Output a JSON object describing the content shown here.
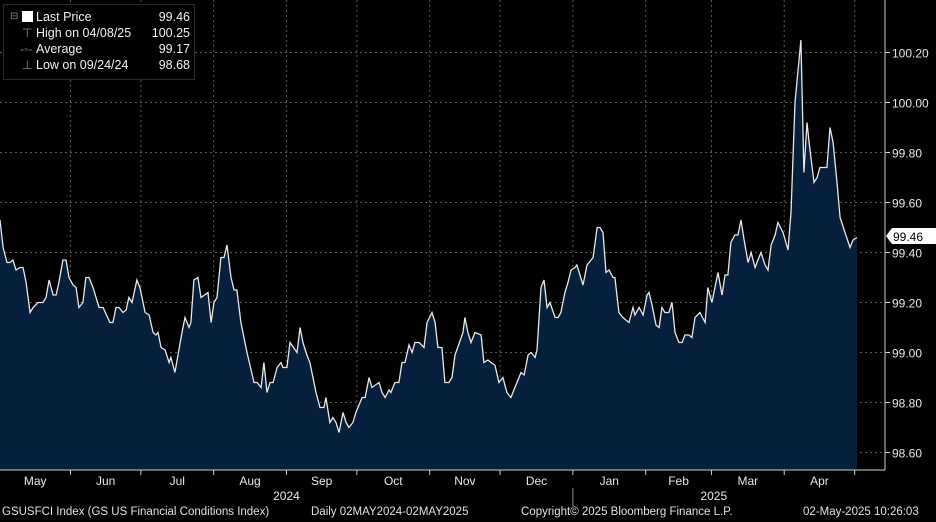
{
  "legend": {
    "rows": [
      {
        "label": "Last Price",
        "value": "99.46"
      },
      {
        "label": "High on 04/08/25",
        "value": "100.25"
      },
      {
        "label": "Average",
        "value": "99.17"
      },
      {
        "label": "Low on 09/24/24",
        "value": "98.68"
      }
    ]
  },
  "footer": {
    "security": "GSUSFCI Index (GS US Financial Conditions Index)",
    "range": "Daily 02MAY2024-02MAY2025",
    "copyright": "Copyright© 2025 Bloomberg Finance L.P.",
    "timestamp": "02-May-2025 10:26:03"
  },
  "colors": {
    "line": "#e8e8e8",
    "area": "#061f3d",
    "grid": "#5a5a5a",
    "background": "#000000"
  },
  "chart_data": {
    "type": "area",
    "title": "GS US Financial Conditions Index",
    "xlabel": "",
    "ylabel": "",
    "x_unit": "days since 02MAY2024",
    "xlim": [
      0,
      365
    ],
    "ylim": [
      98.53,
      100.41
    ],
    "grid": true,
    "last_value_label": "99.46",
    "y_ticks": [
      "98.60",
      "98.80",
      "99.00",
      "99.20",
      "99.40",
      "99.60",
      "99.80",
      "100.00",
      "100.20"
    ],
    "months": [
      {
        "label": "May",
        "start": -1,
        "end": 30
      },
      {
        "label": "Jun",
        "start": 30,
        "end": 60
      },
      {
        "label": "Jul",
        "start": 60,
        "end": 91
      },
      {
        "label": "Aug",
        "start": 91,
        "end": 122
      },
      {
        "label": "Sep",
        "start": 122,
        "end": 152
      },
      {
        "label": "Oct",
        "start": 152,
        "end": 183
      },
      {
        "label": "Nov",
        "start": 183,
        "end": 213
      },
      {
        "label": "Dec",
        "start": 213,
        "end": 244
      },
      {
        "label": "Jan",
        "start": 244,
        "end": 275
      },
      {
        "label": "Feb",
        "start": 275,
        "end": 303
      },
      {
        "label": "Mar",
        "start": 303,
        "end": 334
      },
      {
        "label": "Apr",
        "start": 334,
        "end": 364
      }
    ],
    "years": [
      {
        "label": "2024",
        "start": -1,
        "end": 244
      },
      {
        "label": "2025",
        "start": 244,
        "end": 364
      }
    ],
    "series": [
      {
        "name": "Last Price",
        "points": [
          [
            0,
            99.53
          ],
          [
            1.3,
            99.42
          ],
          [
            3,
            99.36
          ],
          [
            4.3,
            99.36
          ],
          [
            5.5,
            99.37
          ],
          [
            6.8,
            99.33
          ],
          [
            8.5,
            99.34
          ],
          [
            9.8,
            99.34
          ],
          [
            11.1,
            99.28
          ],
          [
            12.8,
            99.16
          ],
          [
            14.1,
            99.18
          ],
          [
            16.2,
            99.2
          ],
          [
            18.3,
            99.2
          ],
          [
            19.6,
            99.22
          ],
          [
            20.9,
            99.29
          ],
          [
            22.6,
            99.23
          ],
          [
            23.9,
            99.23
          ],
          [
            25.1,
            99.28
          ],
          [
            26.8,
            99.37
          ],
          [
            28.1,
            99.37
          ],
          [
            29.4,
            99.3
          ],
          [
            31.1,
            99.27
          ],
          [
            32.4,
            99.26
          ],
          [
            33.6,
            99.18
          ],
          [
            35.3,
            99.2
          ],
          [
            36.6,
            99.3
          ],
          [
            37.9,
            99.3
          ],
          [
            39.6,
            99.26
          ],
          [
            42.2,
            99.18
          ],
          [
            43.9,
            99.18
          ],
          [
            46.8,
            99.12
          ],
          [
            48.1,
            99.12
          ],
          [
            49.4,
            99.18
          ],
          [
            50.7,
            99.18
          ],
          [
            52.4,
            99.16
          ],
          [
            53.7,
            99.17
          ],
          [
            54.9,
            99.22
          ],
          [
            56.2,
            99.2
          ],
          [
            58.3,
            99.29
          ],
          [
            59.6,
            99.26
          ],
          [
            61.8,
            99.16
          ],
          [
            63.5,
            99.15
          ],
          [
            65.2,
            99.08
          ],
          [
            66.4,
            99.07
          ],
          [
            67.3,
            99.08
          ],
          [
            68.6,
            99.02
          ],
          [
            70.3,
            99.01
          ],
          [
            72,
            98.96
          ],
          [
            72.8,
            98.98
          ],
          [
            74.5,
            98.92
          ],
          [
            77.5,
            99.08
          ],
          [
            78.8,
            99.14
          ],
          [
            80.5,
            99.1
          ],
          [
            81.3,
            99.12
          ],
          [
            82.6,
            99.29
          ],
          [
            84.3,
            99.3
          ],
          [
            85.6,
            99.22
          ],
          [
            88.6,
            99.24
          ],
          [
            89.9,
            99.12
          ],
          [
            91.1,
            99.2
          ],
          [
            92.4,
            99.22
          ],
          [
            94.1,
            99.38
          ],
          [
            95.4,
            99.38
          ],
          [
            96.7,
            99.43
          ],
          [
            98.4,
            99.3
          ],
          [
            99.7,
            99.25
          ],
          [
            100.9,
            99.25
          ],
          [
            102.6,
            99.12
          ],
          [
            105.2,
            99.0
          ],
          [
            108.2,
            98.88
          ],
          [
            109.5,
            98.88
          ],
          [
            111.2,
            98.86
          ],
          [
            112.4,
            98.96
          ],
          [
            113.7,
            98.84
          ],
          [
            115,
            98.88
          ],
          [
            116.3,
            98.88
          ],
          [
            118,
            98.94
          ],
          [
            119.7,
            98.96
          ],
          [
            120.5,
            98.94
          ],
          [
            122.2,
            98.94
          ],
          [
            123.5,
            99.04
          ],
          [
            126.5,
            99.0
          ],
          [
            127.8,
            99.1
          ],
          [
            129,
            99.04
          ],
          [
            130.7,
            98.99
          ],
          [
            132,
            98.96
          ],
          [
            134.6,
            98.84
          ],
          [
            136.3,
            98.78
          ],
          [
            138,
            98.78
          ],
          [
            138.8,
            98.82
          ],
          [
            140.5,
            98.72
          ],
          [
            141.8,
            98.74
          ],
          [
            143.1,
            98.72
          ],
          [
            144.4,
            98.68
          ],
          [
            146.1,
            98.76
          ],
          [
            147.4,
            98.72
          ],
          [
            148.6,
            98.7
          ],
          [
            150.3,
            98.72
          ],
          [
            151.6,
            98.76
          ],
          [
            154.2,
            98.82
          ],
          [
            155.5,
            98.82
          ],
          [
            157.2,
            98.9
          ],
          [
            158.4,
            98.86
          ],
          [
            161.4,
            98.88
          ],
          [
            162.7,
            98.84
          ],
          [
            164,
            98.82
          ],
          [
            165.7,
            98.85
          ],
          [
            166.5,
            98.84
          ],
          [
            168.2,
            98.88
          ],
          [
            169.9,
            98.88
          ],
          [
            171.2,
            98.96
          ],
          [
            172.5,
            98.96
          ],
          [
            174.2,
            99.03
          ],
          [
            175.5,
            99.0
          ],
          [
            176.7,
            99.04
          ],
          [
            178.5,
            99.04
          ],
          [
            180.6,
            99.02
          ],
          [
            181.9,
            99.12
          ],
          [
            184,
            99.16
          ],
          [
            185.3,
            99.12
          ],
          [
            186.5,
            99.02
          ],
          [
            188.2,
            99.02
          ],
          [
            189.5,
            98.88
          ],
          [
            191.2,
            98.88
          ],
          [
            192.5,
            98.9
          ],
          [
            193.8,
            98.99
          ],
          [
            197.2,
            99.08
          ],
          [
            198,
            99.14
          ],
          [
            199.3,
            99.08
          ],
          [
            200.6,
            99.04
          ],
          [
            202.3,
            99.08
          ],
          [
            204.9,
            99.07
          ],
          [
            206.1,
            98.96
          ],
          [
            207.8,
            98.97
          ],
          [
            209.1,
            98.96
          ],
          [
            210.8,
            98.95
          ],
          [
            212.5,
            98.88
          ],
          [
            214.2,
            98.9
          ],
          [
            215.9,
            98.84
          ],
          [
            217.6,
            98.82
          ],
          [
            219.3,
            98.86
          ],
          [
            220.6,
            98.89
          ],
          [
            221.9,
            98.92
          ],
          [
            223.2,
            98.91
          ],
          [
            224.9,
            98.99
          ],
          [
            226.2,
            99.0
          ],
          [
            227.9,
            98.98
          ],
          [
            228.7,
            99.01
          ],
          [
            230.4,
            99.26
          ],
          [
            231.7,
            99.29
          ],
          [
            233,
            99.18
          ],
          [
            234.2,
            99.2
          ],
          [
            236.4,
            99.14
          ],
          [
            237.7,
            99.14
          ],
          [
            238.9,
            99.16
          ],
          [
            240.6,
            99.24
          ],
          [
            241.9,
            99.28
          ],
          [
            243.2,
            99.33
          ],
          [
            244.9,
            99.34
          ],
          [
            245.7,
            99.35
          ],
          [
            248.3,
            99.27
          ],
          [
            250,
            99.35
          ],
          [
            252.6,
            99.38
          ],
          [
            254.3,
            99.5
          ],
          [
            255.5,
            99.5
          ],
          [
            256.8,
            99.48
          ],
          [
            258.1,
            99.32
          ],
          [
            259.4,
            99.33
          ],
          [
            261.1,
            99.3
          ],
          [
            261.9,
            99.3
          ],
          [
            263.6,
            99.16
          ],
          [
            265.3,
            99.14
          ],
          [
            267.9,
            99.12
          ],
          [
            269.6,
            99.18
          ],
          [
            270.4,
            99.15
          ],
          [
            272.2,
            99.18
          ],
          [
            273.9,
            99.15
          ],
          [
            275.6,
            99.23
          ],
          [
            276.4,
            99.24
          ],
          [
            277.7,
            99.19
          ],
          [
            279.4,
            99.11
          ],
          [
            280.7,
            99.1
          ],
          [
            281.9,
            99.18
          ],
          [
            283.2,
            99.16
          ],
          [
            284.9,
            99.16
          ],
          [
            286.2,
            99.2
          ],
          [
            287.5,
            99.08
          ],
          [
            289.2,
            99.04
          ],
          [
            290.5,
            99.04
          ],
          [
            291.7,
            99.07
          ],
          [
            293.4,
            99.07
          ],
          [
            294.7,
            99.06
          ],
          [
            296,
            99.14
          ],
          [
            298.1,
            99.16
          ],
          [
            300.3,
            99.12
          ],
          [
            301.5,
            99.26
          ],
          [
            303.2,
            99.2
          ],
          [
            305.8,
            99.32
          ],
          [
            307.5,
            99.23
          ],
          [
            308.8,
            99.31
          ],
          [
            310,
            99.31
          ],
          [
            311.3,
            99.44
          ],
          [
            313,
            99.47
          ],
          [
            314.3,
            99.47
          ],
          [
            315.6,
            99.53
          ],
          [
            316.9,
            99.45
          ],
          [
            318.6,
            99.36
          ],
          [
            319.9,
            99.4
          ],
          [
            321.6,
            99.34
          ],
          [
            322.8,
            99.37
          ],
          [
            324.1,
            99.4
          ],
          [
            325.8,
            99.35
          ],
          [
            327.1,
            99.33
          ],
          [
            328.4,
            99.43
          ],
          [
            330.1,
            99.47
          ],
          [
            331.3,
            99.52
          ],
          [
            333.5,
            99.48
          ],
          [
            335.6,
            99.41
          ],
          [
            336.9,
            99.56
          ],
          [
            338.6,
            100.0
          ],
          [
            341.1,
            100.25
          ],
          [
            342.4,
            99.72
          ],
          [
            343.7,
            99.92
          ],
          [
            344.6,
            99.84
          ],
          [
            346.7,
            99.68
          ],
          [
            348,
            99.7
          ],
          [
            349.2,
            99.74
          ],
          [
            352.2,
            99.74
          ],
          [
            353.5,
            99.9
          ],
          [
            354.8,
            99.84
          ],
          [
            356.5,
            99.68
          ],
          [
            357.8,
            99.54
          ],
          [
            359.9,
            99.48
          ],
          [
            362,
            99.42
          ],
          [
            363.3,
            99.45
          ],
          [
            365,
            99.46
          ]
        ]
      }
    ]
  }
}
